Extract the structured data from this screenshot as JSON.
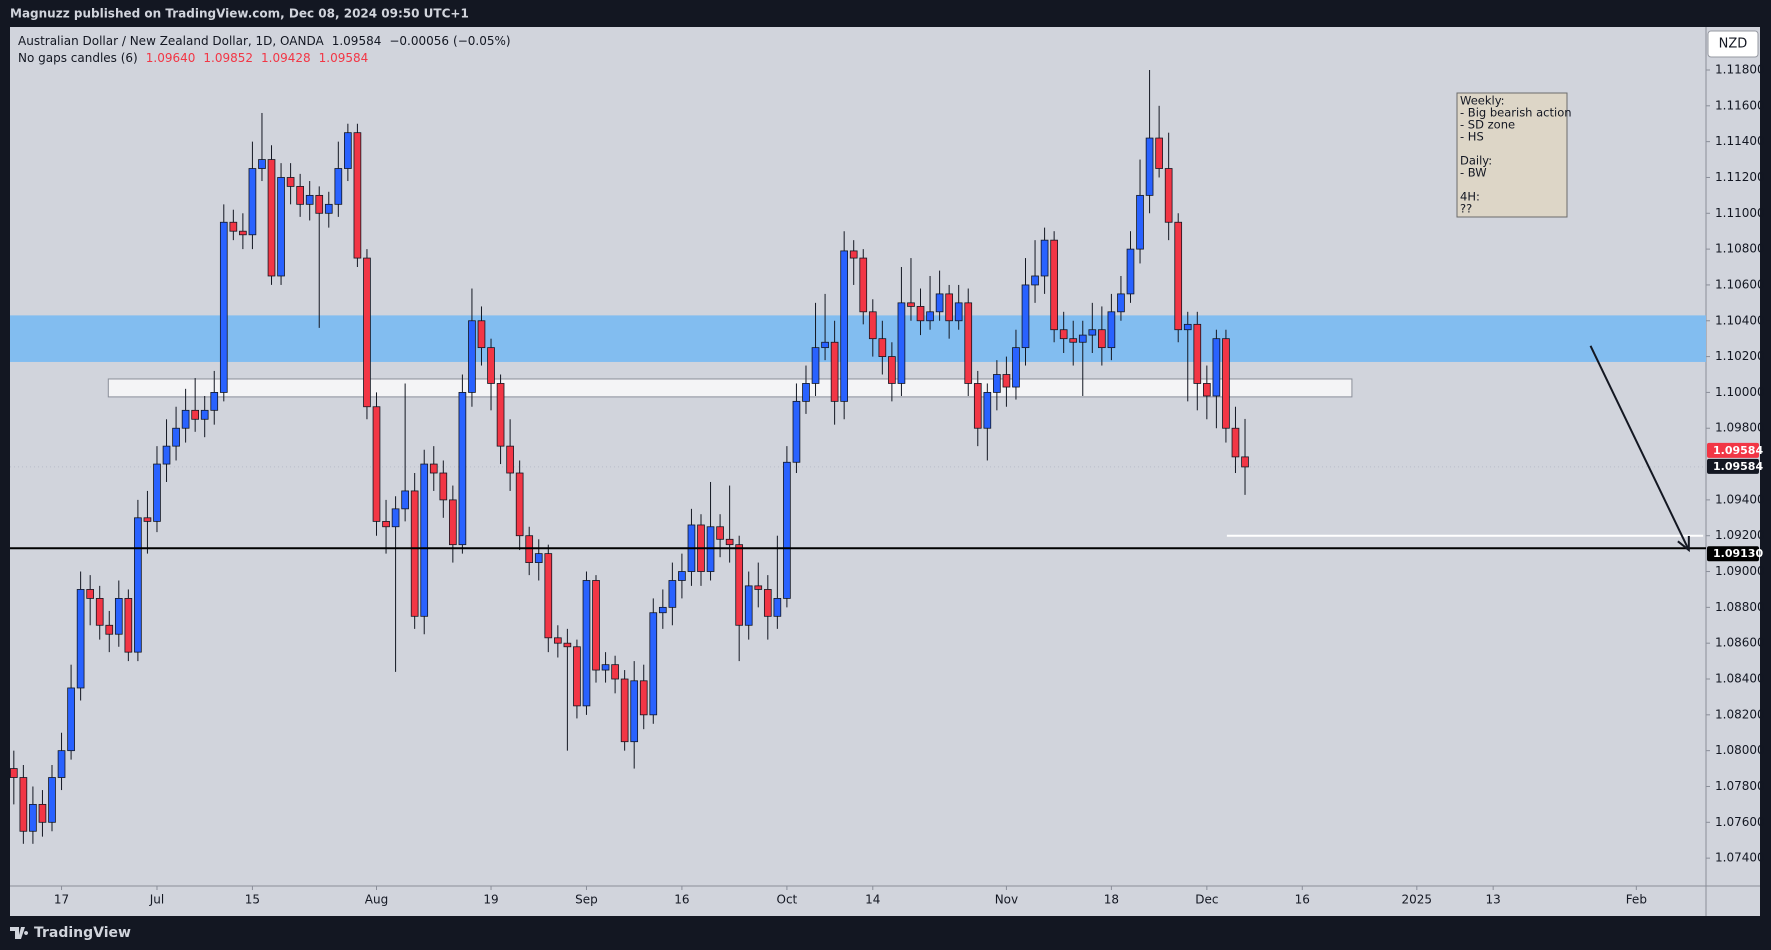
{
  "header": {
    "publisher": "Magnuzz published on TradingView.com, Dec 08, 2024 09:50 UTC+1"
  },
  "footer": {
    "brand": "TradingView"
  },
  "chart_data": {
    "type": "candlestick",
    "title": "Australian Dollar / New Zealand Dollar, 1D, OANDA",
    "last_price": {
      "value": 1.09584,
      "label": "1.09584"
    },
    "change": {
      "value": -0.00056,
      "label": "−0.00056"
    },
    "change_pct": {
      "value": -0.05,
      "label": "(−0.05%)"
    },
    "indicator": {
      "name": "No gaps candles (6)",
      "ohlc_labels": [
        "1.09640",
        "1.09852",
        "1.09428",
        "1.09584"
      ]
    },
    "currency": "NZD",
    "up_color": "#2962ff",
    "down_color": "#f23645",
    "candles": [
      [
        1.079,
        1.08,
        1.077,
        1.0785
      ],
      [
        1.0785,
        1.0792,
        1.0748,
        1.0755
      ],
      [
        1.0755,
        1.078,
        1.0748,
        1.077
      ],
      [
        1.077,
        1.0778,
        1.0752,
        1.076
      ],
      [
        1.076,
        1.0792,
        1.0755,
        1.0785
      ],
      [
        1.0785,
        1.081,
        1.0778,
        1.08
      ],
      [
        1.08,
        1.0848,
        1.0795,
        1.0835
      ],
      [
        1.0835,
        1.09,
        1.0828,
        1.089
      ],
      [
        1.089,
        1.0898,
        1.087,
        1.0885
      ],
      [
        1.0885,
        1.0892,
        1.0862,
        1.087
      ],
      [
        1.087,
        1.0878,
        1.0855,
        1.0865
      ],
      [
        1.0865,
        1.0895,
        1.0858,
        1.0885
      ],
      [
        1.0885,
        1.089,
        1.085,
        1.0855
      ],
      [
        1.0855,
        1.094,
        1.085,
        1.093
      ],
      [
        1.093,
        1.0945,
        1.091,
        1.0928
      ],
      [
        1.0928,
        1.097,
        1.0922,
        1.096
      ],
      [
        1.096,
        1.0985,
        1.095,
        1.097
      ],
      [
        1.097,
        1.0992,
        1.0962,
        1.098
      ],
      [
        1.098,
        1.1002,
        1.0972,
        1.099
      ],
      [
        1.099,
        1.1008,
        1.0978,
        1.0985
      ],
      [
        1.0985,
        1.0998,
        1.0975,
        1.099
      ],
      [
        1.099,
        1.1012,
        1.0982,
        1.1
      ],
      [
        1.1,
        1.1105,
        1.0995,
        1.1095
      ],
      [
        1.1095,
        1.1102,
        1.1085,
        1.109
      ],
      [
        1.109,
        1.11,
        1.108,
        1.1088
      ],
      [
        1.1088,
        1.114,
        1.108,
        1.1125
      ],
      [
        1.1125,
        1.1156,
        1.1118,
        1.113
      ],
      [
        1.113,
        1.1138,
        1.106,
        1.1065
      ],
      [
        1.1065,
        1.1128,
        1.106,
        1.112
      ],
      [
        1.112,
        1.1128,
        1.1105,
        1.1115
      ],
      [
        1.1115,
        1.1122,
        1.1098,
        1.1105
      ],
      [
        1.1105,
        1.1118,
        1.1096,
        1.111
      ],
      [
        1.111,
        1.1115,
        1.1036,
        1.11
      ],
      [
        1.11,
        1.1112,
        1.1092,
        1.1105
      ],
      [
        1.1105,
        1.114,
        1.1098,
        1.1125
      ],
      [
        1.1125,
        1.115,
        1.1118,
        1.1145
      ],
      [
        1.1145,
        1.115,
        1.107,
        1.1075
      ],
      [
        1.1075,
        1.108,
        1.0985,
        1.0992
      ],
      [
        1.0992,
        1.1,
        1.092,
        1.0928
      ],
      [
        1.0928,
        1.094,
        1.091,
        1.0925
      ],
      [
        1.0925,
        1.0942,
        1.0844,
        1.0935
      ],
      [
        1.0935,
        1.1005,
        1.0928,
        1.0945
      ],
      [
        1.0945,
        1.0955,
        1.0868,
        1.0875
      ],
      [
        1.0875,
        1.0968,
        1.0865,
        1.096
      ],
      [
        1.096,
        1.097,
        1.0945,
        1.0955
      ],
      [
        1.0955,
        1.0962,
        1.093,
        1.094
      ],
      [
        1.094,
        1.0948,
        1.0905,
        1.0915
      ],
      [
        1.0915,
        1.101,
        1.091,
        1.1
      ],
      [
        1.1,
        1.1058,
        1.0992,
        1.104
      ],
      [
        1.104,
        1.1048,
        1.1015,
        1.1025
      ],
      [
        1.1025,
        1.103,
        1.099,
        1.1005
      ],
      [
        1.1005,
        1.101,
        1.096,
        1.097
      ],
      [
        1.097,
        1.0985,
        1.0945,
        1.0955
      ],
      [
        1.0955,
        1.0962,
        1.0912,
        1.092
      ],
      [
        1.092,
        1.0925,
        1.0898,
        1.0905
      ],
      [
        1.0905,
        1.0918,
        1.0895,
        1.091
      ],
      [
        1.091,
        1.0915,
        1.0855,
        1.0863
      ],
      [
        1.0863,
        1.087,
        1.0852,
        1.086
      ],
      [
        1.086,
        1.0868,
        1.08,
        1.0858
      ],
      [
        1.0858,
        1.0862,
        1.0818,
        1.0825
      ],
      [
        1.0825,
        1.09,
        1.082,
        1.0895
      ],
      [
        1.0895,
        1.0898,
        1.0838,
        1.0845
      ],
      [
        1.0845,
        1.0855,
        1.0838,
        1.0848
      ],
      [
        1.0848,
        1.0853,
        1.0832,
        1.084
      ],
      [
        1.084,
        1.0845,
        1.08,
        1.0805
      ],
      [
        1.0805,
        1.085,
        1.079,
        1.0839
      ],
      [
        1.0839,
        1.0848,
        1.0812,
        1.082
      ],
      [
        1.082,
        1.0885,
        1.0815,
        1.0877
      ],
      [
        1.0877,
        1.089,
        1.0868,
        1.088
      ],
      [
        1.088,
        1.0905,
        1.087,
        1.0895
      ],
      [
        1.0895,
        1.091,
        1.0885,
        1.09
      ],
      [
        1.09,
        1.0935,
        1.0892,
        1.0926
      ],
      [
        1.0926,
        1.0932,
        1.0892,
        1.09
      ],
      [
        1.09,
        1.095,
        1.0895,
        1.0925
      ],
      [
        1.0925,
        1.0932,
        1.0908,
        1.0918
      ],
      [
        1.0918,
        1.0948,
        1.0905,
        1.0915
      ],
      [
        1.0915,
        1.092,
        1.085,
        1.087
      ],
      [
        1.087,
        1.09,
        1.0862,
        1.0892
      ],
      [
        1.0892,
        1.0905,
        1.088,
        1.089
      ],
      [
        1.089,
        1.0898,
        1.0862,
        1.0875
      ],
      [
        1.0875,
        1.092,
        1.0868,
        1.0885
      ],
      [
        1.0885,
        1.097,
        1.088,
        1.0961
      ],
      [
        1.0961,
        1.1005,
        1.0955,
        1.0995
      ],
      [
        1.0995,
        1.1015,
        1.0988,
        1.1005
      ],
      [
        1.1005,
        1.105,
        1.0998,
        1.1025
      ],
      [
        1.1025,
        1.1055,
        1.1018,
        1.1028
      ],
      [
        1.1028,
        1.104,
        1.0982,
        1.0995
      ],
      [
        1.0995,
        1.109,
        1.0985,
        1.1079
      ],
      [
        1.1079,
        1.1085,
        1.106,
        1.1075
      ],
      [
        1.1075,
        1.108,
        1.1038,
        1.1045
      ],
      [
        1.1045,
        1.1052,
        1.102,
        1.103
      ],
      [
        1.103,
        1.104,
        1.101,
        1.102
      ],
      [
        1.102,
        1.1028,
        1.0995,
        1.1005
      ],
      [
        1.1005,
        1.107,
        1.0998,
        1.105
      ],
      [
        1.105,
        1.1075,
        1.104,
        1.1048
      ],
      [
        1.1048,
        1.1058,
        1.1032,
        1.104
      ],
      [
        1.104,
        1.1065,
        1.1035,
        1.1045
      ],
      [
        1.1045,
        1.1068,
        1.104,
        1.1055
      ],
      [
        1.1055,
        1.106,
        1.103,
        1.104
      ],
      [
        1.104,
        1.106,
        1.1035,
        1.105
      ],
      [
        1.105,
        1.1058,
        1.0998,
        1.1005
      ],
      [
        1.1005,
        1.1012,
        1.097,
        1.098
      ],
      [
        1.098,
        1.1005,
        1.0962,
        1.1
      ],
      [
        1.1,
        1.1018,
        1.099,
        1.101
      ],
      [
        1.101,
        1.102,
        1.0992,
        1.1003
      ],
      [
        1.1003,
        1.1035,
        1.0996,
        1.1025
      ],
      [
        1.1025,
        1.1075,
        1.1015,
        1.106
      ],
      [
        1.106,
        1.1085,
        1.105,
        1.1065
      ],
      [
        1.1065,
        1.1092,
        1.1055,
        1.1085
      ],
      [
        1.1085,
        1.109,
        1.1028,
        1.1035
      ],
      [
        1.1035,
        1.1045,
        1.1022,
        1.103
      ],
      [
        1.103,
        1.104,
        1.1015,
        1.1028
      ],
      [
        1.1028,
        1.104,
        1.0998,
        1.1032
      ],
      [
        1.1032,
        1.105,
        1.1022,
        1.1035
      ],
      [
        1.1035,
        1.1048,
        1.1015,
        1.1025
      ],
      [
        1.1025,
        1.1055,
        1.1018,
        1.1045
      ],
      [
        1.1045,
        1.1065,
        1.104,
        1.1055
      ],
      [
        1.1055,
        1.109,
        1.105,
        1.108
      ],
      [
        1.108,
        1.113,
        1.1072,
        1.111
      ],
      [
        1.111,
        1.118,
        1.11,
        1.1142
      ],
      [
        1.1142,
        1.116,
        1.112,
        1.1125
      ],
      [
        1.1125,
        1.1145,
        1.1085,
        1.1095
      ],
      [
        1.1095,
        1.11,
        1.1028,
        1.1035
      ],
      [
        1.1035,
        1.1045,
        1.0995,
        1.1038
      ],
      [
        1.1038,
        1.1045,
        1.099,
        1.1005
      ],
      [
        1.1005,
        1.1015,
        1.0985,
        1.0998
      ],
      [
        1.0998,
        1.1035,
        1.098,
        1.103
      ],
      [
        1.103,
        1.1035,
        1.0972,
        1.098
      ],
      [
        1.098,
        1.0992,
        1.0955,
        1.0964
      ],
      [
        1.0964,
        1.09852,
        1.09428,
        1.09584
      ]
    ],
    "xlim": [
      -0.4,
      177.3
    ],
    "xticks": [
      {
        "value": 5,
        "label": "17"
      },
      {
        "value": 15,
        "label": "Jul"
      },
      {
        "value": 25,
        "label": "15"
      },
      {
        "value": 38,
        "label": "Aug"
      },
      {
        "value": 50,
        "label": "19"
      },
      {
        "value": 60,
        "label": "Sep"
      },
      {
        "value": 70,
        "label": "16"
      },
      {
        "value": 81,
        "label": "Oct"
      },
      {
        "value": 90,
        "label": "14"
      },
      {
        "value": 104,
        "label": "Nov"
      },
      {
        "value": 115,
        "label": "18"
      },
      {
        "value": 125,
        "label": "Dec"
      },
      {
        "value": 135,
        "label": "16"
      },
      {
        "value": 147,
        "label": "2025"
      },
      {
        "value": 155,
        "label": "13"
      },
      {
        "value": 170,
        "label": "Feb"
      }
    ],
    "ylim": [
      1.0725,
      1.1204
    ],
    "yticks": [
      {
        "value": 1.074,
        "label": "1.07400"
      },
      {
        "value": 1.076,
        "label": "1.07600"
      },
      {
        "value": 1.078,
        "label": "1.07800"
      },
      {
        "value": 1.08,
        "label": "1.08000"
      },
      {
        "value": 1.082,
        "label": "1.08200"
      },
      {
        "value": 1.084,
        "label": "1.08400"
      },
      {
        "value": 1.086,
        "label": "1.08600"
      },
      {
        "value": 1.088,
        "label": "1.08800"
      },
      {
        "value": 1.09,
        "label": "1.09000"
      },
      {
        "value": 1.092,
        "label": "1.09200"
      },
      {
        "value": 1.094,
        "label": "1.09400"
      },
      {
        "value": 1.098,
        "label": "1.09800"
      },
      {
        "value": 1.1,
        "label": "1.10000"
      },
      {
        "value": 1.102,
        "label": "1.10200"
      },
      {
        "value": 1.104,
        "label": "1.10400"
      },
      {
        "value": 1.106,
        "label": "1.10600"
      },
      {
        "value": 1.108,
        "label": "1.10800"
      },
      {
        "value": 1.11,
        "label": "1.11000"
      },
      {
        "value": 1.112,
        "label": "1.11200"
      },
      {
        "value": 1.114,
        "label": "1.11400"
      },
      {
        "value": 1.116,
        "label": "1.11600"
      },
      {
        "value": 1.118,
        "label": "1.11800"
      }
    ],
    "grid": false,
    "hline": {
      "value": 1.0913,
      "label": "1.09130",
      "color": "#000000"
    },
    "support_line": {
      "value": 1.092,
      "x": [
        127.1,
        177
      ],
      "color": "#ffffff"
    },
    "zones": [
      {
        "y": [
          1.1017,
          1.1043
        ],
        "color": "#82bdf0"
      },
      {
        "y": [
          1.09975,
          1.10075
        ],
        "x": [
          9.9,
          140.2
        ],
        "color": "#f4f4f6"
      }
    ],
    "arrow": {
      "x": [
        165.2,
        175.5
      ],
      "y": [
        1.1026,
        1.0912
      ],
      "color": "#131722"
    },
    "note": {
      "sections": [
        {
          "heading": "Weekly:",
          "items": [
            "- Big bearish action",
            "- SD zone",
            "- HS"
          ]
        },
        {
          "heading": "Daily:",
          "items": [
            "- BW"
          ]
        },
        {
          "heading": "4H:",
          "items": [
            "??"
          ]
        }
      ]
    }
  }
}
